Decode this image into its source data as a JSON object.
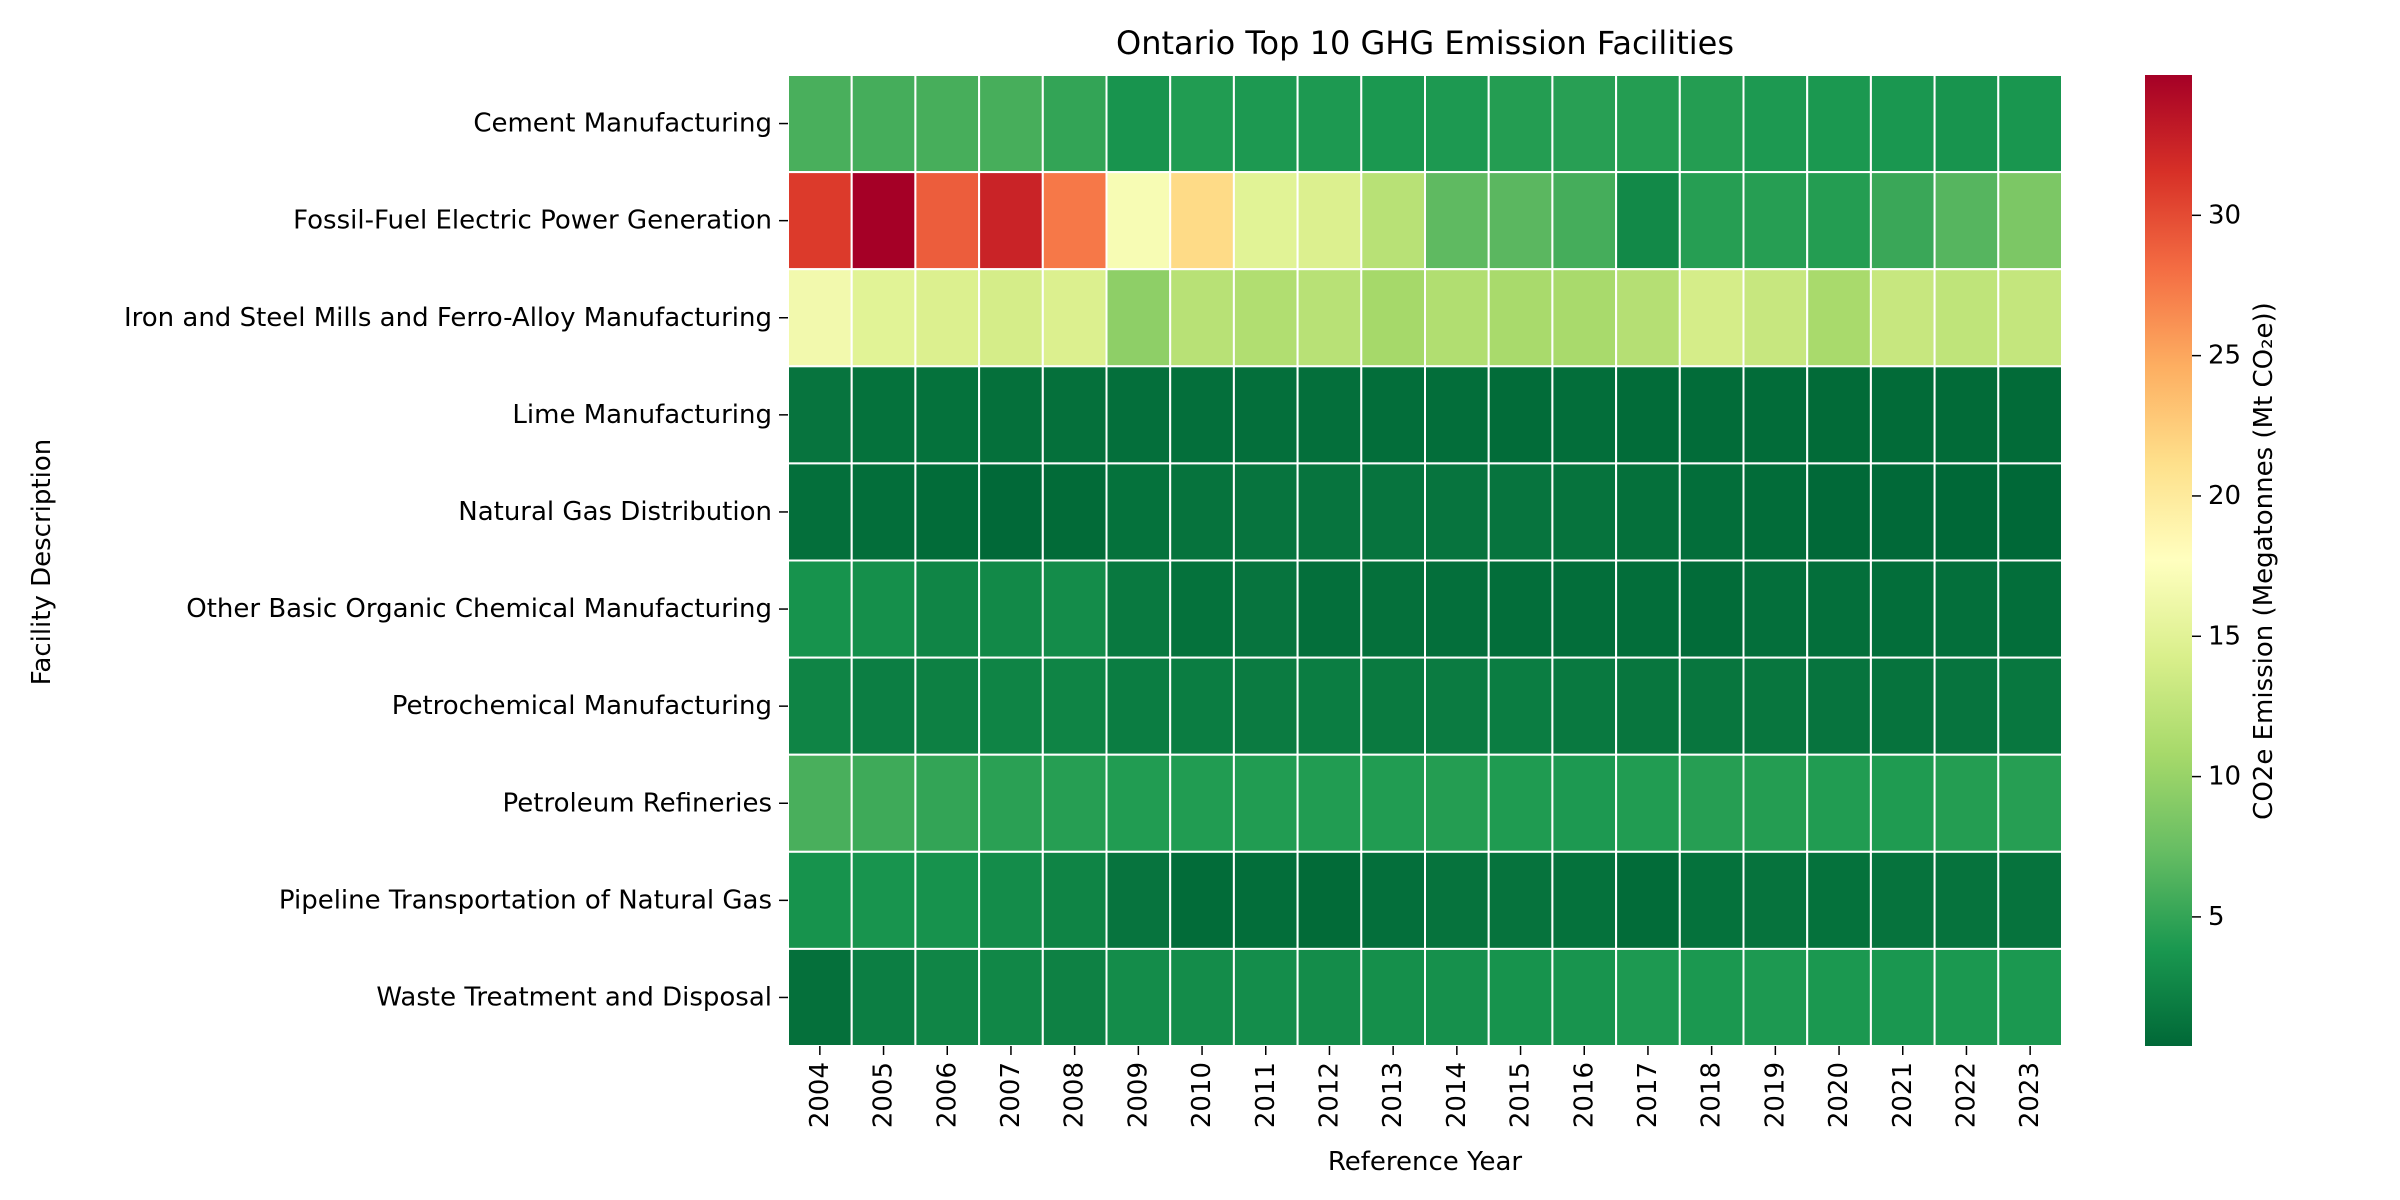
{
  "chart_data": {
    "type": "heatmap",
    "title": "Ontario Top 10 GHG Emission Facilities",
    "xlabel": "Reference Year",
    "ylabel": "Facility Description",
    "colorbar_label": "CO2e Emission (Megatonnes (Mt CO₂e))",
    "colormap": "RdYlGn_r",
    "value_range": [
      0.4,
      35.0
    ],
    "colorbar_ticks": [
      5,
      10,
      15,
      20,
      25,
      30
    ],
    "cell_border_color": "#ffffff",
    "grid": false,
    "x": [
      "2004",
      "2005",
      "2006",
      "2007",
      "2008",
      "2009",
      "2010",
      "2011",
      "2012",
      "2013",
      "2014",
      "2015",
      "2016",
      "2017",
      "2018",
      "2019",
      "2020",
      "2021",
      "2022",
      "2023"
    ],
    "y": [
      "Cement Manufacturing",
      "Fossil-Fuel Electric Power Generation",
      "Iron and Steel Mills and Ferro-Alloy Manufacturing",
      "Lime Manufacturing",
      "Natural Gas Distribution",
      "Other Basic Organic Chemical Manufacturing",
      "Petrochemical Manufacturing",
      "Petroleum Refineries",
      "Pipeline Transportation of Natural Gas",
      "Waste Treatment and Disposal"
    ],
    "values": [
      [
        6.0,
        5.8,
        5.9,
        5.9,
        5.0,
        3.6,
        4.2,
        4.0,
        4.0,
        3.9,
        4.0,
        4.3,
        4.5,
        4.3,
        4.3,
        4.0,
        3.9,
        3.8,
        3.6,
        3.7
      ],
      [
        31.0,
        35.0,
        29.0,
        32.5,
        27.5,
        17.0,
        21.5,
        15.0,
        14.5,
        12.0,
        7.0,
        6.8,
        5.8,
        2.8,
        4.4,
        4.4,
        4.3,
        5.3,
        6.6,
        8.5
      ],
      [
        16.5,
        15.0,
        14.5,
        14.0,
        14.5,
        9.5,
        12.0,
        11.5,
        12.0,
        10.8,
        11.5,
        11.0,
        11.0,
        11.8,
        14.0,
        13.0,
        11.0,
        13.0,
        12.5,
        12.8
      ],
      [
        1.3,
        1.1,
        1.1,
        1.0,
        1.0,
        0.9,
        0.9,
        0.9,
        0.9,
        0.8,
        0.8,
        0.7,
        0.8,
        0.7,
        0.7,
        0.7,
        0.6,
        0.6,
        0.6,
        0.6
      ],
      [
        0.9,
        0.8,
        0.7,
        0.5,
        0.6,
        1.1,
        1.2,
        1.3,
        1.3,
        1.3,
        1.3,
        1.3,
        1.2,
        1.0,
        0.8,
        0.7,
        0.5,
        0.5,
        0.4,
        0.4
      ],
      [
        3.5,
        3.2,
        2.5,
        2.8,
        3.0,
        1.6,
        1.1,
        1.3,
        0.9,
        1.0,
        0.9,
        0.8,
        0.8,
        0.8,
        0.7,
        0.9,
        0.9,
        0.8,
        0.9,
        0.8
      ],
      [
        2.4,
        2.0,
        2.1,
        2.4,
        2.4,
        1.9,
        1.9,
        1.8,
        1.9,
        1.7,
        1.8,
        1.9,
        1.6,
        1.4,
        1.4,
        1.4,
        1.3,
        1.2,
        1.3,
        1.5
      ],
      [
        6.0,
        5.5,
        5.0,
        4.6,
        4.4,
        4.2,
        4.2,
        4.2,
        4.2,
        4.2,
        4.3,
        4.1,
        4.0,
        4.2,
        4.4,
        4.3,
        4.2,
        4.1,
        4.3,
        4.4
      ],
      [
        3.5,
        3.6,
        3.4,
        3.0,
        2.4,
        1.3,
        0.7,
        0.8,
        0.6,
        0.9,
        1.2,
        1.2,
        1.1,
        0.7,
        1.1,
        1.2,
        1.1,
        1.2,
        1.2,
        1.2
      ],
      [
        1.0,
        2.0,
        2.5,
        2.6,
        2.2,
        3.0,
        3.0,
        3.1,
        3.0,
        3.2,
        3.3,
        3.5,
        3.6,
        4.0,
        3.9,
        4.0,
        3.9,
        3.8,
        3.9,
        3.9
      ]
    ]
  }
}
